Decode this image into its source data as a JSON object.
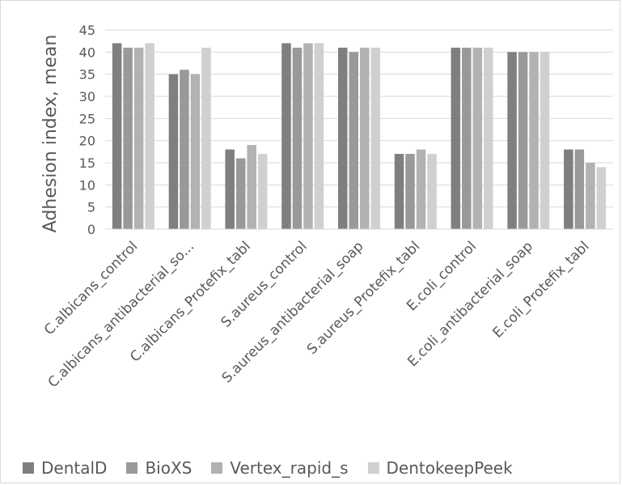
{
  "chart_data": {
    "type": "bar",
    "title": "",
    "xlabel": "",
    "ylabel": "Adhesion index, mean",
    "ylim": [
      0,
      45
    ],
    "yticks": [
      0,
      5,
      10,
      15,
      20,
      25,
      30,
      35,
      40,
      45
    ],
    "grid": true,
    "legend_position": "bottom",
    "categories": [
      "C.albicans_control",
      "C.albicans_antibacterial_so...",
      "C.albicans_Protefix_tabl",
      "S.aureus_control",
      "S.aureus_antibacterial_soap",
      "S.aureus_Protefix_tabl",
      "E.coli_control",
      "E.coli_antibacterial_soap",
      "E.coli_Protefix_tabl"
    ],
    "series": [
      {
        "name": "DentalD",
        "color": "#7f7f7f",
        "values": [
          42,
          35,
          18,
          42,
          41,
          17,
          41,
          40,
          18
        ]
      },
      {
        "name": "BioXS",
        "color": "#999999",
        "values": [
          41,
          36,
          16,
          41,
          40,
          17,
          41,
          40,
          18
        ]
      },
      {
        "name": "Vertex_rapid_s",
        "color": "#b2b2b2",
        "values": [
          41,
          35,
          19,
          42,
          41,
          18,
          41,
          40,
          15
        ]
      },
      {
        "name": "DentokeepPeek",
        "color": "#d0d0d0",
        "values": [
          42,
          41,
          17,
          42,
          41,
          17,
          41,
          40,
          14
        ]
      }
    ]
  }
}
